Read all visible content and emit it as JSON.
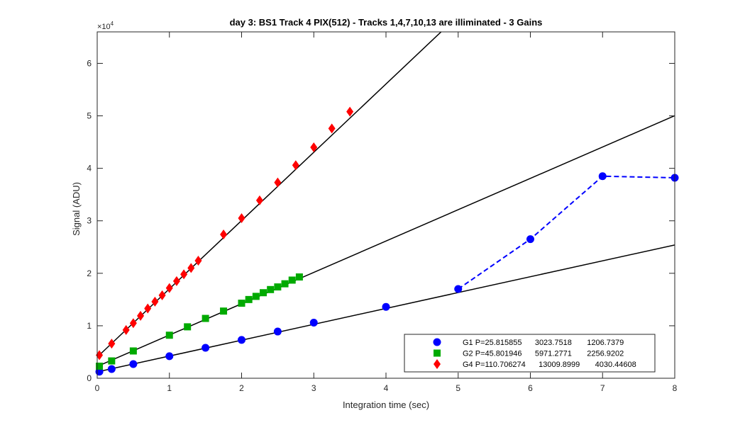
{
  "chart_data": {
    "type": "scatter",
    "title": "day 3: BS1  Track 4 PIX(512) - Tracks 1,4,7,10,13 are illiminated - 3 Gains",
    "xlabel": "Integration time (sec)",
    "ylabel": "Signal (ADU)",
    "xlim": [
      0,
      8
    ],
    "ylim": [
      0,
      66000
    ],
    "x_ticks": [
      0,
      1,
      2,
      3,
      4,
      5,
      6,
      7,
      8
    ],
    "y_ticks": [
      0,
      10000,
      20000,
      30000,
      40000,
      50000,
      60000
    ],
    "y_tick_labels": [
      "0",
      "1",
      "2",
      "3",
      "4",
      "5",
      "6"
    ],
    "y_exponent_label": "×10",
    "y_exponent_power": "4",
    "grid": false,
    "legend_position": "bottom-right",
    "series": [
      {
        "name": "G1 P=25.815855      3023.7518       1206.7379",
        "color": "#0000ff",
        "marker": "circle",
        "x": [
          0.03,
          0.2,
          0.5,
          1,
          1.5,
          2,
          2.5,
          3,
          4,
          5,
          6,
          7,
          8
        ],
        "y": [
          1250,
          1750,
          2700,
          4200,
          5800,
          7300,
          8900,
          10600,
          13600,
          17000,
          26500,
          38500,
          38200
        ]
      },
      {
        "name": "G2 P=45.801946      5971.2771       2256.9202",
        "color": "#00aa00",
        "marker": "square",
        "x": [
          0.03,
          0.2,
          0.5,
          1,
          1.25,
          1.5,
          1.75,
          2,
          2.1,
          2.2,
          2.3,
          2.4,
          2.5,
          2.6,
          2.7,
          2.8
        ],
        "y": [
          2300,
          3300,
          5200,
          8200,
          9800,
          11400,
          12800,
          14300,
          15000,
          15600,
          16300,
          16900,
          17400,
          18000,
          18700,
          19300
        ]
      },
      {
        "name": "G4 P=110.706274      13009.8999       4030.44608",
        "color": "#ff0000",
        "marker": "diamond",
        "x": [
          0.03,
          0.2,
          0.4,
          0.5,
          0.6,
          0.7,
          0.8,
          0.9,
          1,
          1.1,
          1.2,
          1.3,
          1.4,
          1.75,
          2,
          2.25,
          2.5,
          2.75,
          3,
          3.25,
          3.5
        ],
        "y": [
          4400,
          6600,
          9200,
          10500,
          11900,
          13300,
          14600,
          15800,
          17200,
          18500,
          19800,
          21000,
          22400,
          27400,
          30500,
          33900,
          37300,
          40600,
          44000,
          47600,
          50800
        ]
      }
    ],
    "fit_lines": [
      {
        "series": "G1",
        "slope": 3023.7518,
        "intercept": 1206.7379,
        "color": "#000000"
      },
      {
        "series": "G2",
        "slope": 5971.2771,
        "intercept": 2256.9202,
        "color": "#000000"
      },
      {
        "series": "G4",
        "slope": 13009.8999,
        "intercept": 4030.44608,
        "color": "#000000"
      }
    ],
    "dashed_segment": {
      "series": "G1",
      "color": "#0000ff",
      "x": [
        5,
        6,
        7,
        8
      ],
      "y": [
        17000,
        26500,
        38500,
        38200
      ]
    }
  }
}
